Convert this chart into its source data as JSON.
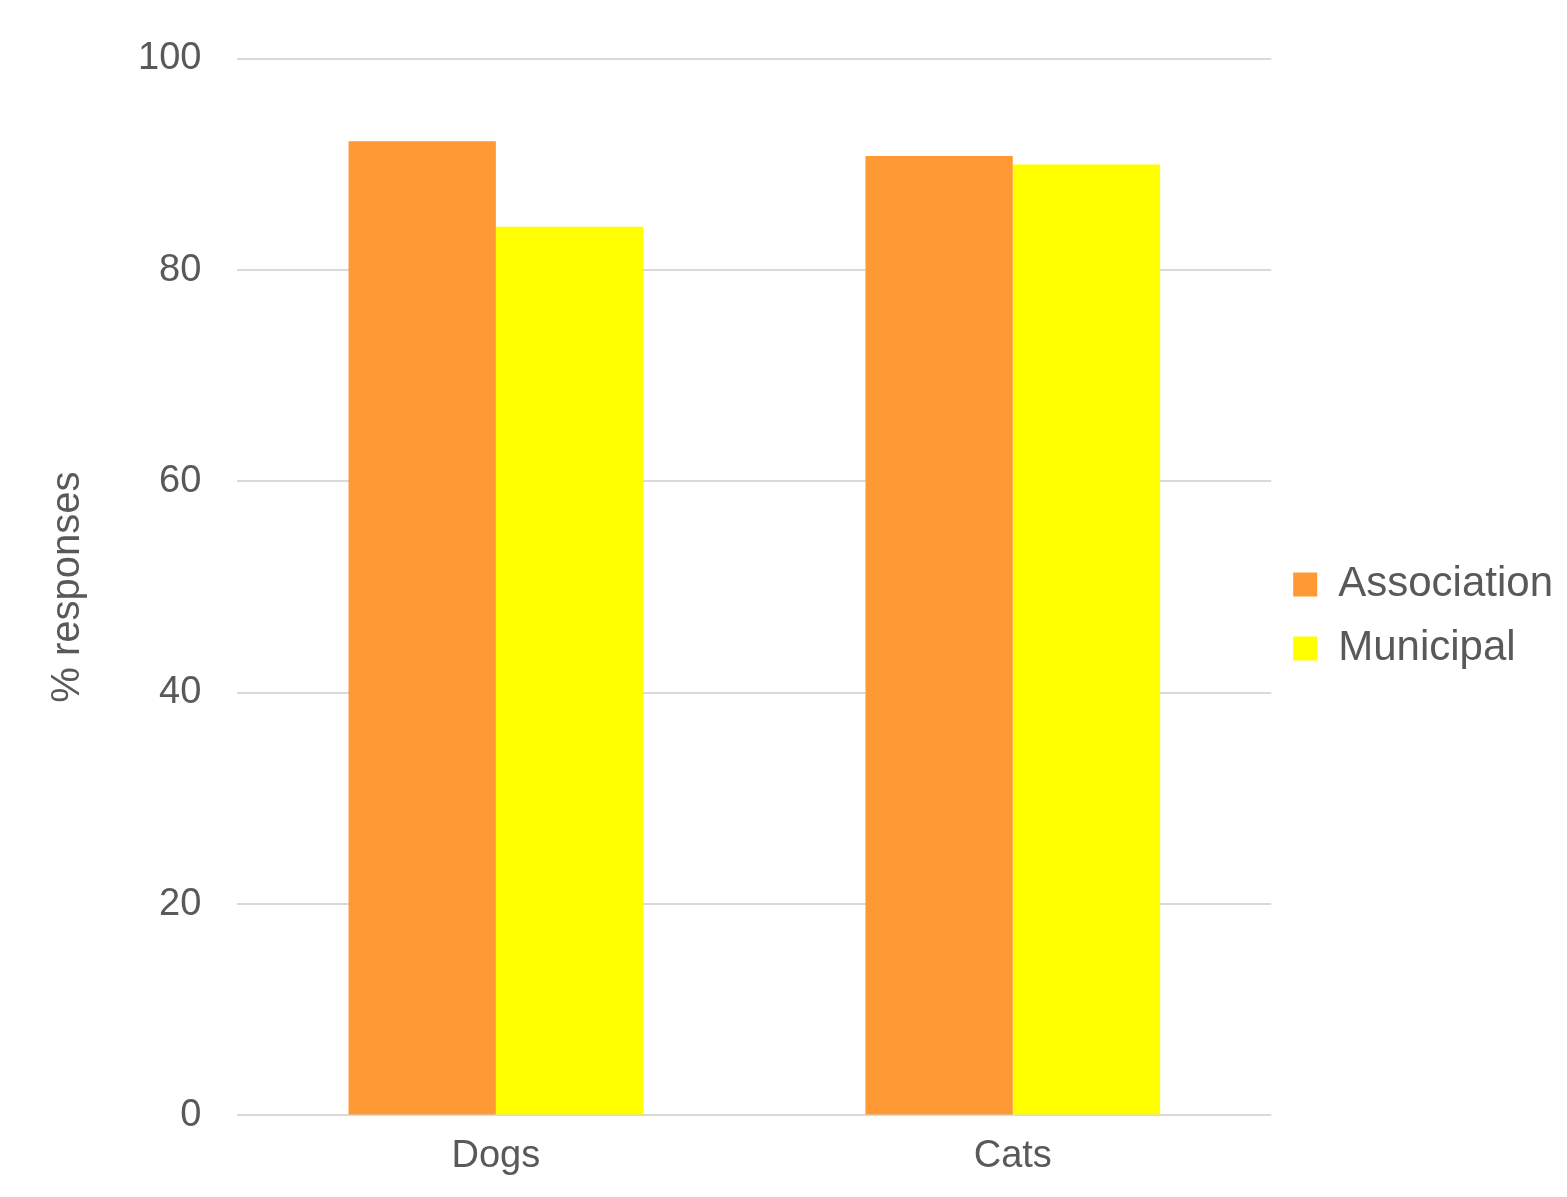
{
  "chart_data": {
    "type": "bar",
    "ylabel": "% responses",
    "categories": [
      "Dogs",
      "Cats"
    ],
    "series": [
      {
        "name": "Association",
        "color": "#ff9933",
        "values": [
          92.2,
          90.8
        ]
      },
      {
        "name": "Municipal",
        "color": "#ffff00",
        "values": [
          84.1,
          90.0
        ]
      }
    ],
    "ylim": [
      0,
      100
    ],
    "yticks": [
      0,
      20,
      40,
      60,
      80,
      100
    ],
    "grid": "y",
    "legend": "right"
  }
}
